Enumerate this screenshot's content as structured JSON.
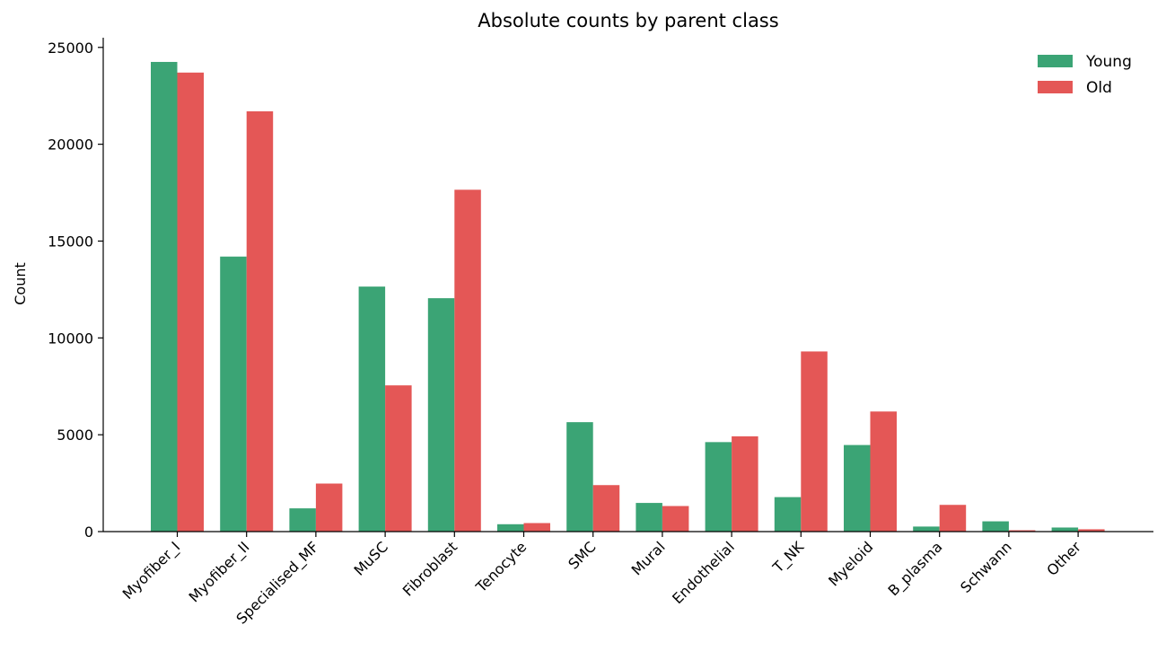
{
  "chart_data": {
    "type": "bar",
    "title": "Absolute counts by parent class",
    "xlabel": "",
    "ylabel": "Count",
    "ylim": [
      0,
      25500
    ],
    "yticks": [
      0,
      5000,
      10000,
      15000,
      20000,
      25000
    ],
    "grid": false,
    "legend_position": "top-right",
    "categories": [
      "Myofiber_I",
      "Myofiber_II",
      "Specialised_MF",
      "MuSC",
      "Fibroblast",
      "Tenocyte",
      "SMC",
      "Mural",
      "Endothelial",
      "T_NK",
      "Myeloid",
      "B_plasma",
      "Schwann",
      "Other"
    ],
    "series": [
      {
        "name": "Young",
        "color": "#3ba475",
        "values": [
          24250,
          14200,
          1200,
          12650,
          12050,
          380,
          5650,
          1480,
          4620,
          1780,
          4470,
          260,
          530,
          210
        ]
      },
      {
        "name": "Old",
        "color": "#e45756",
        "values": [
          23700,
          21700,
          2480,
          7550,
          17650,
          440,
          2400,
          1320,
          4920,
          9300,
          6200,
          1380,
          70,
          120
        ]
      }
    ]
  }
}
